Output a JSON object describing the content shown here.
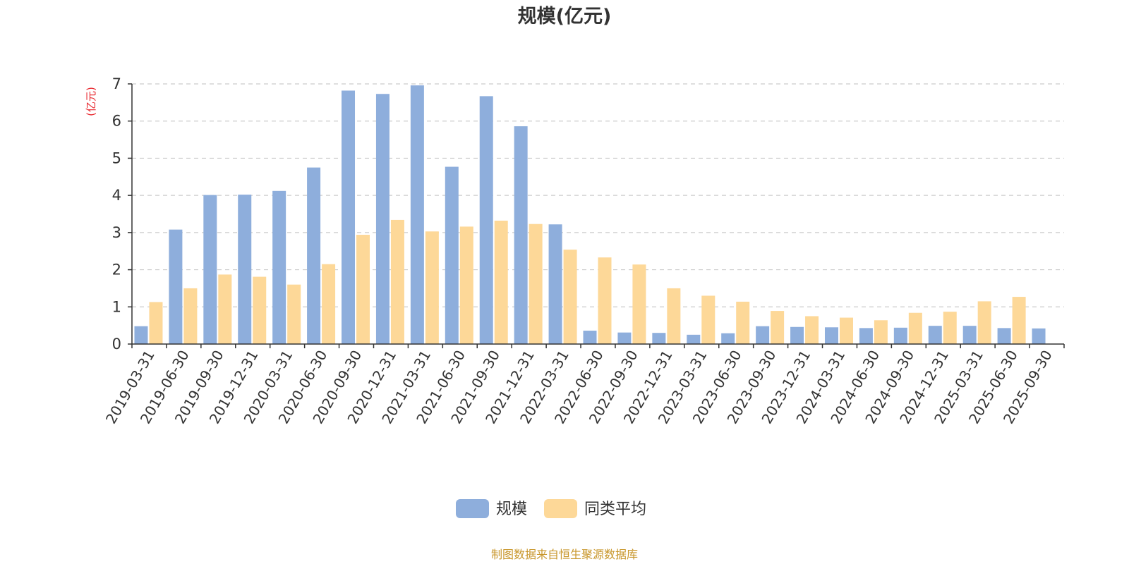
{
  "chart_data": {
    "type": "bar",
    "title": "规模(亿元)",
    "ylabel": "(亿元)",
    "ylim": [
      0,
      7
    ],
    "yticks": [
      0,
      1,
      2,
      3,
      4,
      5,
      6,
      7
    ],
    "grid": true,
    "legend_position": "bottom-center",
    "categories": [
      "2019-03-31",
      "2019-06-30",
      "2019-09-30",
      "2019-12-31",
      "2020-03-31",
      "2020-06-30",
      "2020-09-30",
      "2020-12-31",
      "2021-03-31",
      "2021-06-30",
      "2021-09-30",
      "2021-12-31",
      "2022-03-31",
      "2022-06-30",
      "2022-09-30",
      "2022-12-31",
      "2023-03-31",
      "2023-06-30",
      "2023-09-30",
      "2023-12-31",
      "2024-03-31",
      "2024-06-30",
      "2024-09-30",
      "2024-12-31",
      "2025-03-31",
      "2025-06-30",
      "2025-09-30"
    ],
    "series": [
      {
        "name": "规模",
        "color": "#8eaedc",
        "values": [
          0.48,
          3.08,
          4.01,
          4.02,
          4.12,
          4.75,
          6.82,
          6.73,
          6.96,
          4.77,
          6.67,
          5.86,
          3.22,
          0.36,
          0.31,
          0.3,
          0.25,
          0.29,
          0.48,
          0.46,
          0.45,
          0.43,
          0.44,
          0.49,
          0.49,
          0.43,
          0.42
        ]
      },
      {
        "name": "同类平均",
        "color": "#fdd898",
        "values": [
          1.13,
          1.5,
          1.87,
          1.81,
          1.6,
          2.15,
          2.94,
          3.34,
          3.03,
          3.16,
          3.32,
          3.23,
          2.54,
          2.33,
          2.14,
          1.5,
          1.3,
          1.14,
          0.89,
          0.75,
          0.71,
          0.64,
          0.84,
          0.87,
          1.15,
          1.27,
          null
        ]
      }
    ]
  },
  "colors": {
    "title": "#333333",
    "unit": "#e8262d",
    "axis": "#333333",
    "grid": "#cccccc",
    "source": "#c8962a"
  },
  "source_text": "制图数据来自恒生聚源数据库"
}
